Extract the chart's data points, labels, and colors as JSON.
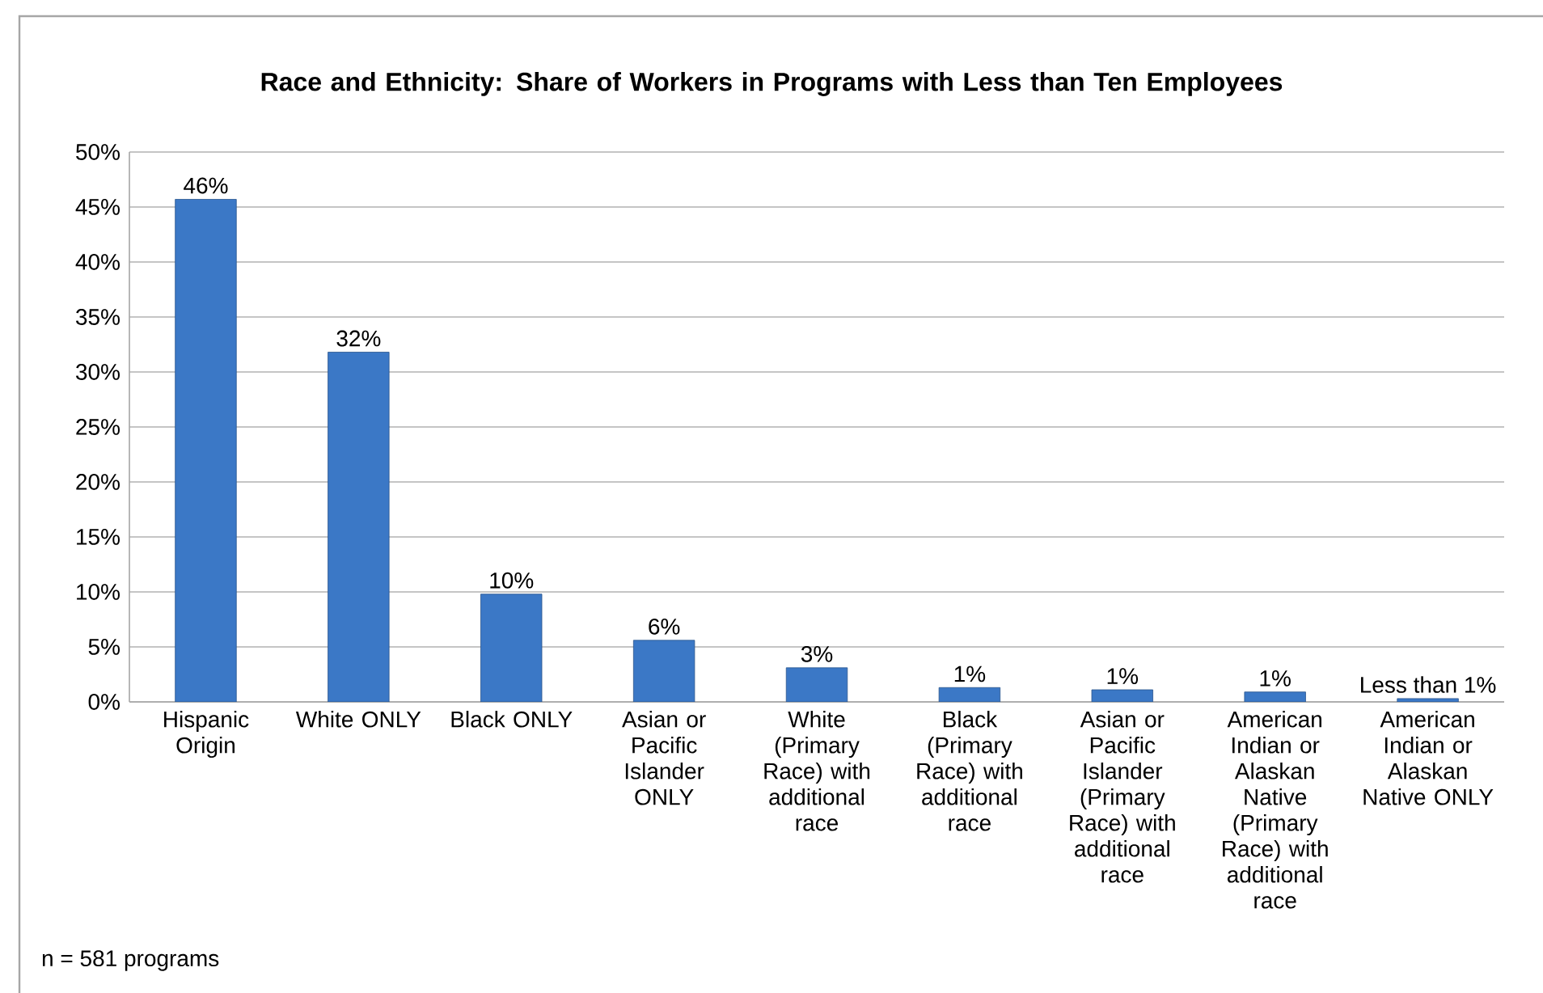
{
  "chart_data": {
    "type": "bar",
    "title": "Race and Ethnicity:  Share of Workers in Programs with Less than Ten Employees",
    "categories": [
      "Hispanic Origin",
      "White ONLY",
      "Black ONLY",
      "Asian or Pacific Islander ONLY",
      "White (Primary Race) with additional race",
      "Black (Primary Race) with additional race",
      "Asian or Pacific Islander (Primary Race) with additional race",
      "American Indian or Alaskan Native (Primary Race) with additional race",
      "American Indian or Alaskan Native ONLY"
    ],
    "values": [
      45.7,
      31.8,
      9.8,
      5.6,
      3.1,
      1.3,
      1.1,
      0.9,
      0.3
    ],
    "value_labels": [
      "46%",
      "32%",
      "10%",
      "6%",
      "3%",
      "1%",
      "1%",
      "1%",
      "Less than 1%"
    ],
    "color": "#3b78c6",
    "ylim": [
      0,
      50
    ],
    "yticks": [
      {
        "value": 0,
        "label": "0%"
      },
      {
        "value": 5,
        "label": "5%"
      },
      {
        "value": 10,
        "label": "10%"
      },
      {
        "value": 15,
        "label": "15%"
      },
      {
        "value": 20,
        "label": "20%"
      },
      {
        "value": 25,
        "label": "25%"
      },
      {
        "value": 30,
        "label": "30%"
      },
      {
        "value": 35,
        "label": "35%"
      },
      {
        "value": 40,
        "label": "40%"
      },
      {
        "value": 45,
        "label": "45%"
      },
      {
        "value": 50,
        "label": "50%"
      }
    ],
    "grid": "y",
    "annotations": [
      "n = 581 programs"
    ]
  }
}
